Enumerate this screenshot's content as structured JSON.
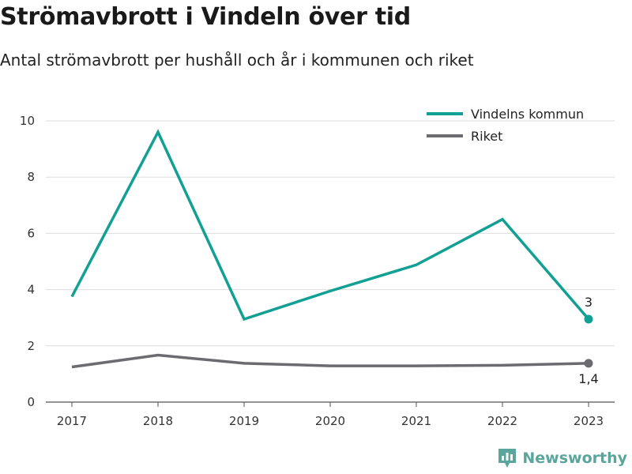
{
  "title": "Strömavbrott i Vindeln över tid",
  "subtitle": "Antal strömavbrott per hushåll och år i kommunen och riket",
  "brand": {
    "name": "Newsworthy",
    "icon": "newsworthy-logo-icon",
    "color": "#5aa59c"
  },
  "chart_data": {
    "type": "line",
    "x": [
      "2017",
      "2018",
      "2019",
      "2020",
      "2021",
      "2022",
      "2023"
    ],
    "ylim": [
      0,
      10.5
    ],
    "yticks": [
      0,
      2,
      4,
      6,
      8,
      10
    ],
    "grid": true,
    "legend_position": "top-right",
    "series": [
      {
        "name": "Vindelns kommun",
        "color": "#12a094",
        "values": [
          3.75,
          9.6,
          2.95,
          3.95,
          4.88,
          6.5,
          2.95
        ],
        "end_label": "3",
        "end_label_position": "above"
      },
      {
        "name": "Riket",
        "color": "#6c6b70",
        "values": [
          1.25,
          1.67,
          1.38,
          1.29,
          1.29,
          1.31,
          1.38
        ],
        "end_label": "1,4",
        "end_label_position": "below"
      }
    ]
  }
}
